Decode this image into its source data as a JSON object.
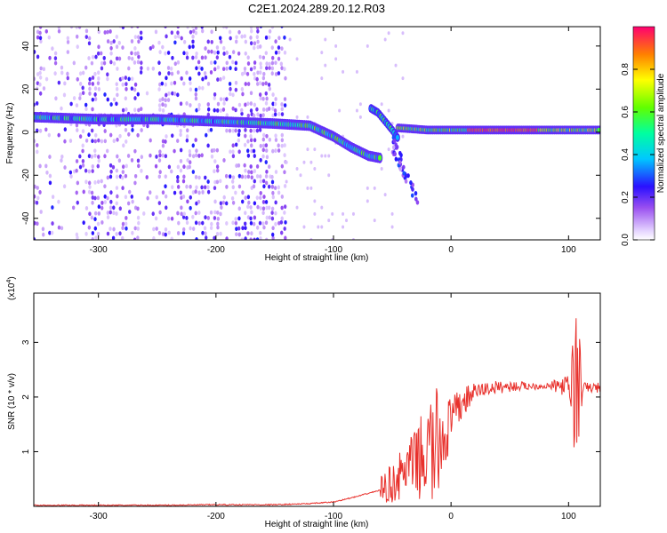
{
  "figure": {
    "title": "C2E1.2024.289.20.12.R03"
  },
  "chart_data": [
    {
      "type": "heatmap",
      "xlabel": "Height of straight line (km)",
      "ylabel": "Frequency (Hz)",
      "xlim": [
        -355,
        127
      ],
      "ylim": [
        -50,
        49
      ],
      "xticks": [
        -300,
        -200,
        -100,
        0,
        100
      ],
      "yticks": [
        -40,
        -20,
        0,
        20,
        40
      ],
      "colorbar": {
        "label": "Normalized spectral amplitude",
        "range": [
          0,
          1
        ],
        "ticks": [
          0.0,
          0.2,
          0.4,
          0.6,
          0.8
        ],
        "tick_labels": [
          "0.0",
          "0.2",
          "0.4",
          "0.6",
          "0.8"
        ]
      },
      "dominant_ridge": {
        "x": [
          -355,
          -300,
          -250,
          -200,
          -150,
          -120,
          -100,
          -85,
          -70,
          -60
        ],
        "y": [
          7,
          6,
          6,
          5,
          4,
          3,
          -2,
          -7,
          -11,
          -12
        ]
      },
      "branch_ridge": {
        "x": [
          -68,
          -62,
          -56,
          -50,
          -45
        ],
        "y": [
          11,
          9,
          5,
          1,
          -3
        ]
      },
      "baseline_ridge": {
        "x": [
          -45,
          -20,
          0,
          20,
          50,
          80,
          100,
          127
        ],
        "y": [
          2,
          1,
          1,
          1,
          1,
          1,
          1,
          1
        ]
      },
      "grid": false
    },
    {
      "type": "line",
      "xlabel": "Height of straight line (km)",
      "ylabel": "SNR (10 * v/v)",
      "scale_note": "(x10",
      "scale_exp": "4",
      "xlim": [
        -355,
        127
      ],
      "ylim": [
        0,
        3.9
      ],
      "xticks": [
        -300,
        -200,
        -100,
        0,
        100
      ],
      "yticks": [
        1,
        2,
        3
      ],
      "color": "#e8302b",
      "series": [
        {
          "x": [
            -355,
            -300,
            -250,
            -200,
            -150,
            -120,
            -100,
            -80,
            -60,
            -50,
            -40,
            -30,
            -20,
            -10,
            0,
            10,
            20,
            30,
            40,
            50,
            60,
            70,
            80,
            90,
            100,
            104,
            106,
            108,
            110,
            115,
            120,
            127
          ],
          "y": [
            0.02,
            0.02,
            0.02,
            0.03,
            0.03,
            0.05,
            0.08,
            0.18,
            0.3,
            0.42,
            0.62,
            0.82,
            0.95,
            1.15,
            1.55,
            1.9,
            2.1,
            2.15,
            2.18,
            2.19,
            2.2,
            2.2,
            2.2,
            2.2,
            2.2,
            2.2,
            2.2,
            2.2,
            2.18,
            2.17,
            2.17,
            2.17
          ],
          "noise_envelope": [
            {
              "x": -60,
              "amp": 0.25
            },
            {
              "x": -30,
              "amp": 0.6
            },
            {
              "x": -15,
              "amp": 1.2
            },
            {
              "x": 0,
              "amp": 0.45
            },
            {
              "x": 20,
              "amp": 0.15
            },
            {
              "x": 80,
              "amp": 0.05
            },
            {
              "x": 100,
              "amp": 0.2
            },
            {
              "x": 107,
              "amp": 1.8
            },
            {
              "x": 112,
              "amp": 0.1
            }
          ]
        }
      ],
      "grid": false
    }
  ]
}
